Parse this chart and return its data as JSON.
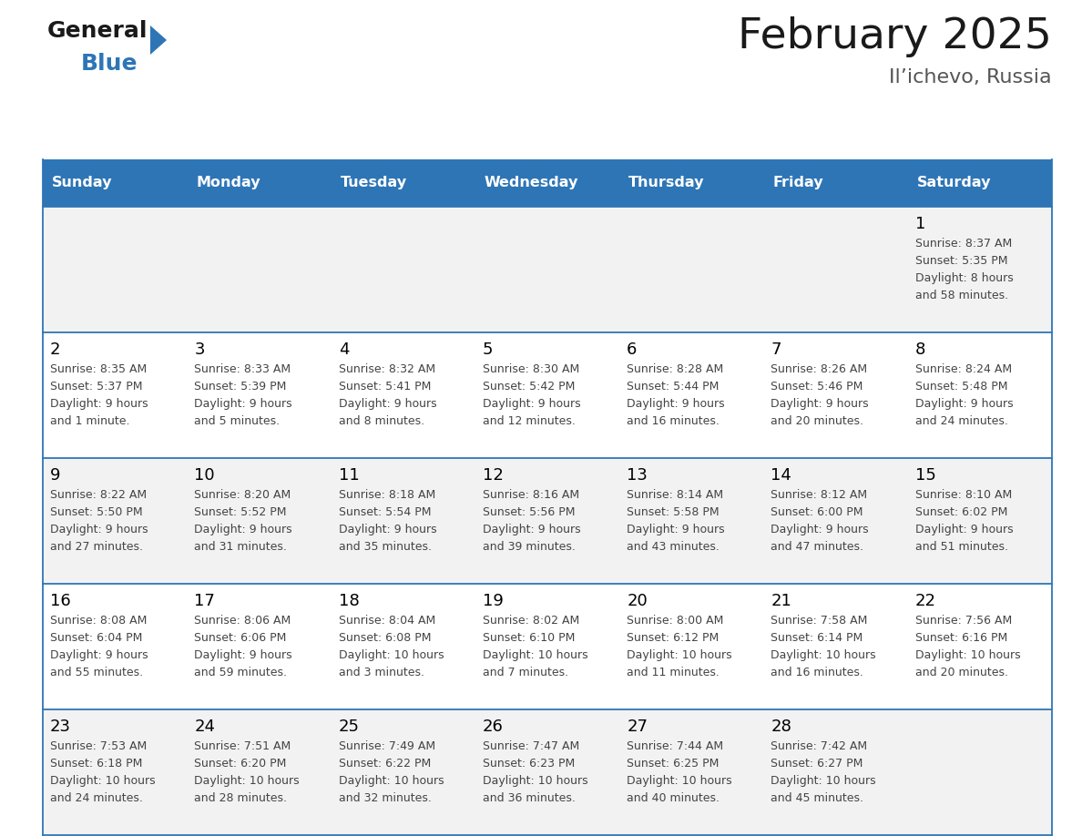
{
  "title": "February 2025",
  "subtitle": "Il’ichevo, Russia",
  "header_bg": "#2E75B6",
  "header_text_color": "#FFFFFF",
  "header_days": [
    "Sunday",
    "Monday",
    "Tuesday",
    "Wednesday",
    "Thursday",
    "Friday",
    "Saturday"
  ],
  "row_bg_odd": "#F2F2F2",
  "row_bg_even": "#FFFFFF",
  "cell_border_color": "#2E75B6",
  "day_number_color": "#000000",
  "day_info_color": "#444444",
  "cells": [
    {
      "day": 1,
      "row": 0,
      "col": 6,
      "sunrise": "8:37 AM",
      "sunset": "5:35 PM",
      "daylight_hrs": 8,
      "daylight_min": "58 minutes"
    },
    {
      "day": 2,
      "row": 1,
      "col": 0,
      "sunrise": "8:35 AM",
      "sunset": "5:37 PM",
      "daylight_hrs": 9,
      "daylight_min": "1 minute"
    },
    {
      "day": 3,
      "row": 1,
      "col": 1,
      "sunrise": "8:33 AM",
      "sunset": "5:39 PM",
      "daylight_hrs": 9,
      "daylight_min": "5 minutes"
    },
    {
      "day": 4,
      "row": 1,
      "col": 2,
      "sunrise": "8:32 AM",
      "sunset": "5:41 PM",
      "daylight_hrs": 9,
      "daylight_min": "8 minutes"
    },
    {
      "day": 5,
      "row": 1,
      "col": 3,
      "sunrise": "8:30 AM",
      "sunset": "5:42 PM",
      "daylight_hrs": 9,
      "daylight_min": "12 minutes"
    },
    {
      "day": 6,
      "row": 1,
      "col": 4,
      "sunrise": "8:28 AM",
      "sunset": "5:44 PM",
      "daylight_hrs": 9,
      "daylight_min": "16 minutes"
    },
    {
      "day": 7,
      "row": 1,
      "col": 5,
      "sunrise": "8:26 AM",
      "sunset": "5:46 PM",
      "daylight_hrs": 9,
      "daylight_min": "20 minutes"
    },
    {
      "day": 8,
      "row": 1,
      "col": 6,
      "sunrise": "8:24 AM",
      "sunset": "5:48 PM",
      "daylight_hrs": 9,
      "daylight_min": "24 minutes"
    },
    {
      "day": 9,
      "row": 2,
      "col": 0,
      "sunrise": "8:22 AM",
      "sunset": "5:50 PM",
      "daylight_hrs": 9,
      "daylight_min": "27 minutes"
    },
    {
      "day": 10,
      "row": 2,
      "col": 1,
      "sunrise": "8:20 AM",
      "sunset": "5:52 PM",
      "daylight_hrs": 9,
      "daylight_min": "31 minutes"
    },
    {
      "day": 11,
      "row": 2,
      "col": 2,
      "sunrise": "8:18 AM",
      "sunset": "5:54 PM",
      "daylight_hrs": 9,
      "daylight_min": "35 minutes"
    },
    {
      "day": 12,
      "row": 2,
      "col": 3,
      "sunrise": "8:16 AM",
      "sunset": "5:56 PM",
      "daylight_hrs": 9,
      "daylight_min": "39 minutes"
    },
    {
      "day": 13,
      "row": 2,
      "col": 4,
      "sunrise": "8:14 AM",
      "sunset": "5:58 PM",
      "daylight_hrs": 9,
      "daylight_min": "43 minutes"
    },
    {
      "day": 14,
      "row": 2,
      "col": 5,
      "sunrise": "8:12 AM",
      "sunset": "6:00 PM",
      "daylight_hrs": 9,
      "daylight_min": "47 minutes"
    },
    {
      "day": 15,
      "row": 2,
      "col": 6,
      "sunrise": "8:10 AM",
      "sunset": "6:02 PM",
      "daylight_hrs": 9,
      "daylight_min": "51 minutes"
    },
    {
      "day": 16,
      "row": 3,
      "col": 0,
      "sunrise": "8:08 AM",
      "sunset": "6:04 PM",
      "daylight_hrs": 9,
      "daylight_min": "55 minutes"
    },
    {
      "day": 17,
      "row": 3,
      "col": 1,
      "sunrise": "8:06 AM",
      "sunset": "6:06 PM",
      "daylight_hrs": 9,
      "daylight_min": "59 minutes"
    },
    {
      "day": 18,
      "row": 3,
      "col": 2,
      "sunrise": "8:04 AM",
      "sunset": "6:08 PM",
      "daylight_hrs": 10,
      "daylight_min": "3 minutes"
    },
    {
      "day": 19,
      "row": 3,
      "col": 3,
      "sunrise": "8:02 AM",
      "sunset": "6:10 PM",
      "daylight_hrs": 10,
      "daylight_min": "7 minutes"
    },
    {
      "day": 20,
      "row": 3,
      "col": 4,
      "sunrise": "8:00 AM",
      "sunset": "6:12 PM",
      "daylight_hrs": 10,
      "daylight_min": "11 minutes"
    },
    {
      "day": 21,
      "row": 3,
      "col": 5,
      "sunrise": "7:58 AM",
      "sunset": "6:14 PM",
      "daylight_hrs": 10,
      "daylight_min": "16 minutes"
    },
    {
      "day": 22,
      "row": 3,
      "col": 6,
      "sunrise": "7:56 AM",
      "sunset": "6:16 PM",
      "daylight_hrs": 10,
      "daylight_min": "20 minutes"
    },
    {
      "day": 23,
      "row": 4,
      "col": 0,
      "sunrise": "7:53 AM",
      "sunset": "6:18 PM",
      "daylight_hrs": 10,
      "daylight_min": "24 minutes"
    },
    {
      "day": 24,
      "row": 4,
      "col": 1,
      "sunrise": "7:51 AM",
      "sunset": "6:20 PM",
      "daylight_hrs": 10,
      "daylight_min": "28 minutes"
    },
    {
      "day": 25,
      "row": 4,
      "col": 2,
      "sunrise": "7:49 AM",
      "sunset": "6:22 PM",
      "daylight_hrs": 10,
      "daylight_min": "32 minutes"
    },
    {
      "day": 26,
      "row": 4,
      "col": 3,
      "sunrise": "7:47 AM",
      "sunset": "6:23 PM",
      "daylight_hrs": 10,
      "daylight_min": "36 minutes"
    },
    {
      "day": 27,
      "row": 4,
      "col": 4,
      "sunrise": "7:44 AM",
      "sunset": "6:25 PM",
      "daylight_hrs": 10,
      "daylight_min": "40 minutes"
    },
    {
      "day": 28,
      "row": 4,
      "col": 5,
      "sunrise": "7:42 AM",
      "sunset": "6:27 PM",
      "daylight_hrs": 10,
      "daylight_min": "45 minutes"
    }
  ],
  "logo_general_color": "#1a1a1a",
  "logo_blue_color": "#2E75B6",
  "logo_triangle_color": "#2E75B6"
}
